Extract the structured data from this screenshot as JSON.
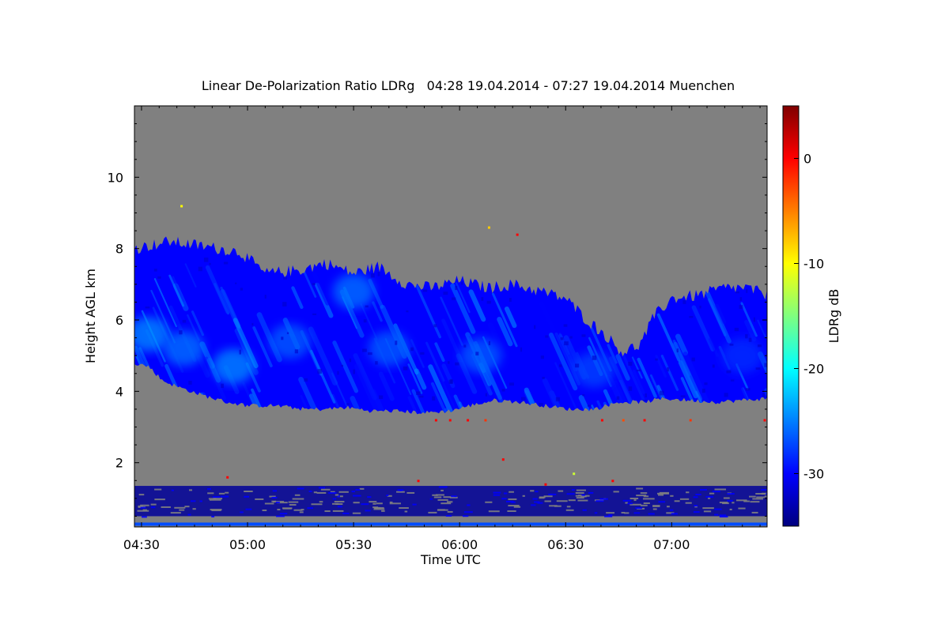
{
  "chart_data": {
    "type": "heatmap",
    "title": "Linear De-Polarization Ratio LDRg   04:28 19.04.2014 - 07:27 19.04.2014 Muenchen",
    "xlabel": "Time UTC",
    "ylabel": "Height AGL km",
    "x_range_minutes_utc": [
      268,
      447
    ],
    "x_ticks": [
      {
        "label": "04:30",
        "minutes": 270
      },
      {
        "label": "05:00",
        "minutes": 300
      },
      {
        "label": "05:30",
        "minutes": 330
      },
      {
        "label": "06:00",
        "minutes": 360
      },
      {
        "label": "06:30",
        "minutes": 390
      },
      {
        "label": "07:00",
        "minutes": 420
      }
    ],
    "y_range_km": [
      0.2,
      12
    ],
    "y_ticks": [
      {
        "label": "2",
        "value": 2
      },
      {
        "label": "4",
        "value": 4
      },
      {
        "label": "6",
        "value": 6
      },
      {
        "label": "8",
        "value": 8
      },
      {
        "label": "10",
        "value": 10
      }
    ],
    "colorbar": {
      "label": "LDRg dB",
      "range": [
        -35,
        5
      ],
      "ticks": [
        {
          "label": "0",
          "value": 0
        },
        {
          "label": "-10",
          "value": -10
        },
        {
          "label": "-20",
          "value": -20
        },
        {
          "label": "-30",
          "value": -30
        }
      ],
      "colormap": [
        "#00007f",
        "#0000ff",
        "#007fff",
        "#00ffff",
        "#7fff7f",
        "#ffff00",
        "#ff7f00",
        "#ff0000",
        "#7f0000"
      ]
    },
    "no_data_color": "#808080",
    "cloud_layer": {
      "description_values": "typical LDRg in cloud about -30 to -24 dB",
      "top_km": [
        [
          268,
          8.0
        ],
        [
          273,
          8.1
        ],
        [
          278,
          8.2
        ],
        [
          285,
          8.1
        ],
        [
          292,
          8.0
        ],
        [
          298,
          7.9
        ],
        [
          305,
          7.3
        ],
        [
          315,
          7.4
        ],
        [
          322,
          7.6
        ],
        [
          330,
          7.3
        ],
        [
          337,
          7.5
        ],
        [
          345,
          7.0
        ],
        [
          352,
          6.9
        ],
        [
          360,
          7.1
        ],
        [
          368,
          6.9
        ],
        [
          375,
          7.0
        ],
        [
          383,
          6.8
        ],
        [
          390,
          6.6
        ],
        [
          396,
          6.0
        ],
        [
          401,
          5.6
        ],
        [
          406,
          5.1
        ],
        [
          411,
          5.3
        ],
        [
          415,
          6.1
        ],
        [
          420,
          6.6
        ],
        [
          428,
          6.7
        ],
        [
          435,
          6.9
        ],
        [
          441,
          6.9
        ],
        [
          447,
          6.7
        ]
      ],
      "base_km": [
        [
          268,
          4.8
        ],
        [
          272,
          4.7
        ],
        [
          276,
          4.3
        ],
        [
          281,
          4.1
        ],
        [
          287,
          3.9
        ],
        [
          294,
          3.7
        ],
        [
          300,
          3.6
        ],
        [
          308,
          3.6
        ],
        [
          316,
          3.5
        ],
        [
          322,
          3.5
        ],
        [
          328,
          3.55
        ],
        [
          335,
          3.45
        ],
        [
          342,
          3.45
        ],
        [
          350,
          3.4
        ],
        [
          357,
          3.45
        ],
        [
          363,
          3.6
        ],
        [
          370,
          3.75
        ],
        [
          377,
          3.7
        ],
        [
          384,
          3.6
        ],
        [
          391,
          3.5
        ],
        [
          398,
          3.5
        ],
        [
          405,
          3.7
        ],
        [
          412,
          3.7
        ],
        [
          418,
          3.8
        ],
        [
          425,
          3.75
        ],
        [
          433,
          3.7
        ],
        [
          440,
          3.75
        ],
        [
          447,
          3.8
        ]
      ],
      "low_depol_patches": [
        {
          "t": 272,
          "h": 5.6,
          "dB": -24
        },
        {
          "t": 282,
          "h": 5.2,
          "dB": -25
        },
        {
          "t": 296,
          "h": 4.7,
          "dB": -24
        },
        {
          "t": 312,
          "h": 5.4,
          "dB": -26
        },
        {
          "t": 330,
          "h": 6.8,
          "dB": -25
        },
        {
          "t": 340,
          "h": 5.2,
          "dB": -26
        },
        {
          "t": 366,
          "h": 5.0,
          "dB": -26
        },
        {
          "t": 398,
          "h": 4.6,
          "dB": -27
        },
        {
          "t": 440,
          "h": 5.0,
          "dB": -28
        }
      ]
    },
    "boundary_layer": {
      "band_km": [
        0.5,
        1.35
      ],
      "typical_dB": -34
    },
    "near_ground_km": [
      0.2,
      0.3
    ],
    "scattered_points": [
      {
        "t": 353,
        "h": 3.2,
        "dB": 0
      },
      {
        "t": 357,
        "h": 3.2,
        "dB": 0
      },
      {
        "t": 362,
        "h": 3.2,
        "dB": 0
      },
      {
        "t": 367,
        "h": 3.2,
        "dB": -2
      },
      {
        "t": 400,
        "h": 3.2,
        "dB": 0
      },
      {
        "t": 406,
        "h": 3.2,
        "dB": -3
      },
      {
        "t": 412,
        "h": 3.2,
        "dB": 0
      },
      {
        "t": 425,
        "h": 3.2,
        "dB": -2
      },
      {
        "t": 446,
        "h": 3.2,
        "dB": 0
      },
      {
        "t": 281,
        "h": 9.2,
        "dB": -10
      },
      {
        "t": 368,
        "h": 8.6,
        "dB": -8
      },
      {
        "t": 376,
        "h": 8.4,
        "dB": 0
      },
      {
        "t": 372,
        "h": 2.1,
        "dB": 0
      },
      {
        "t": 294,
        "h": 1.6,
        "dB": 0
      },
      {
        "t": 348,
        "h": 1.5,
        "dB": 0
      },
      {
        "t": 384,
        "h": 1.4,
        "dB": 0
      },
      {
        "t": 392,
        "h": 1.7,
        "dB": -12
      },
      {
        "t": 403,
        "h": 1.5,
        "dB": 0
      }
    ]
  }
}
